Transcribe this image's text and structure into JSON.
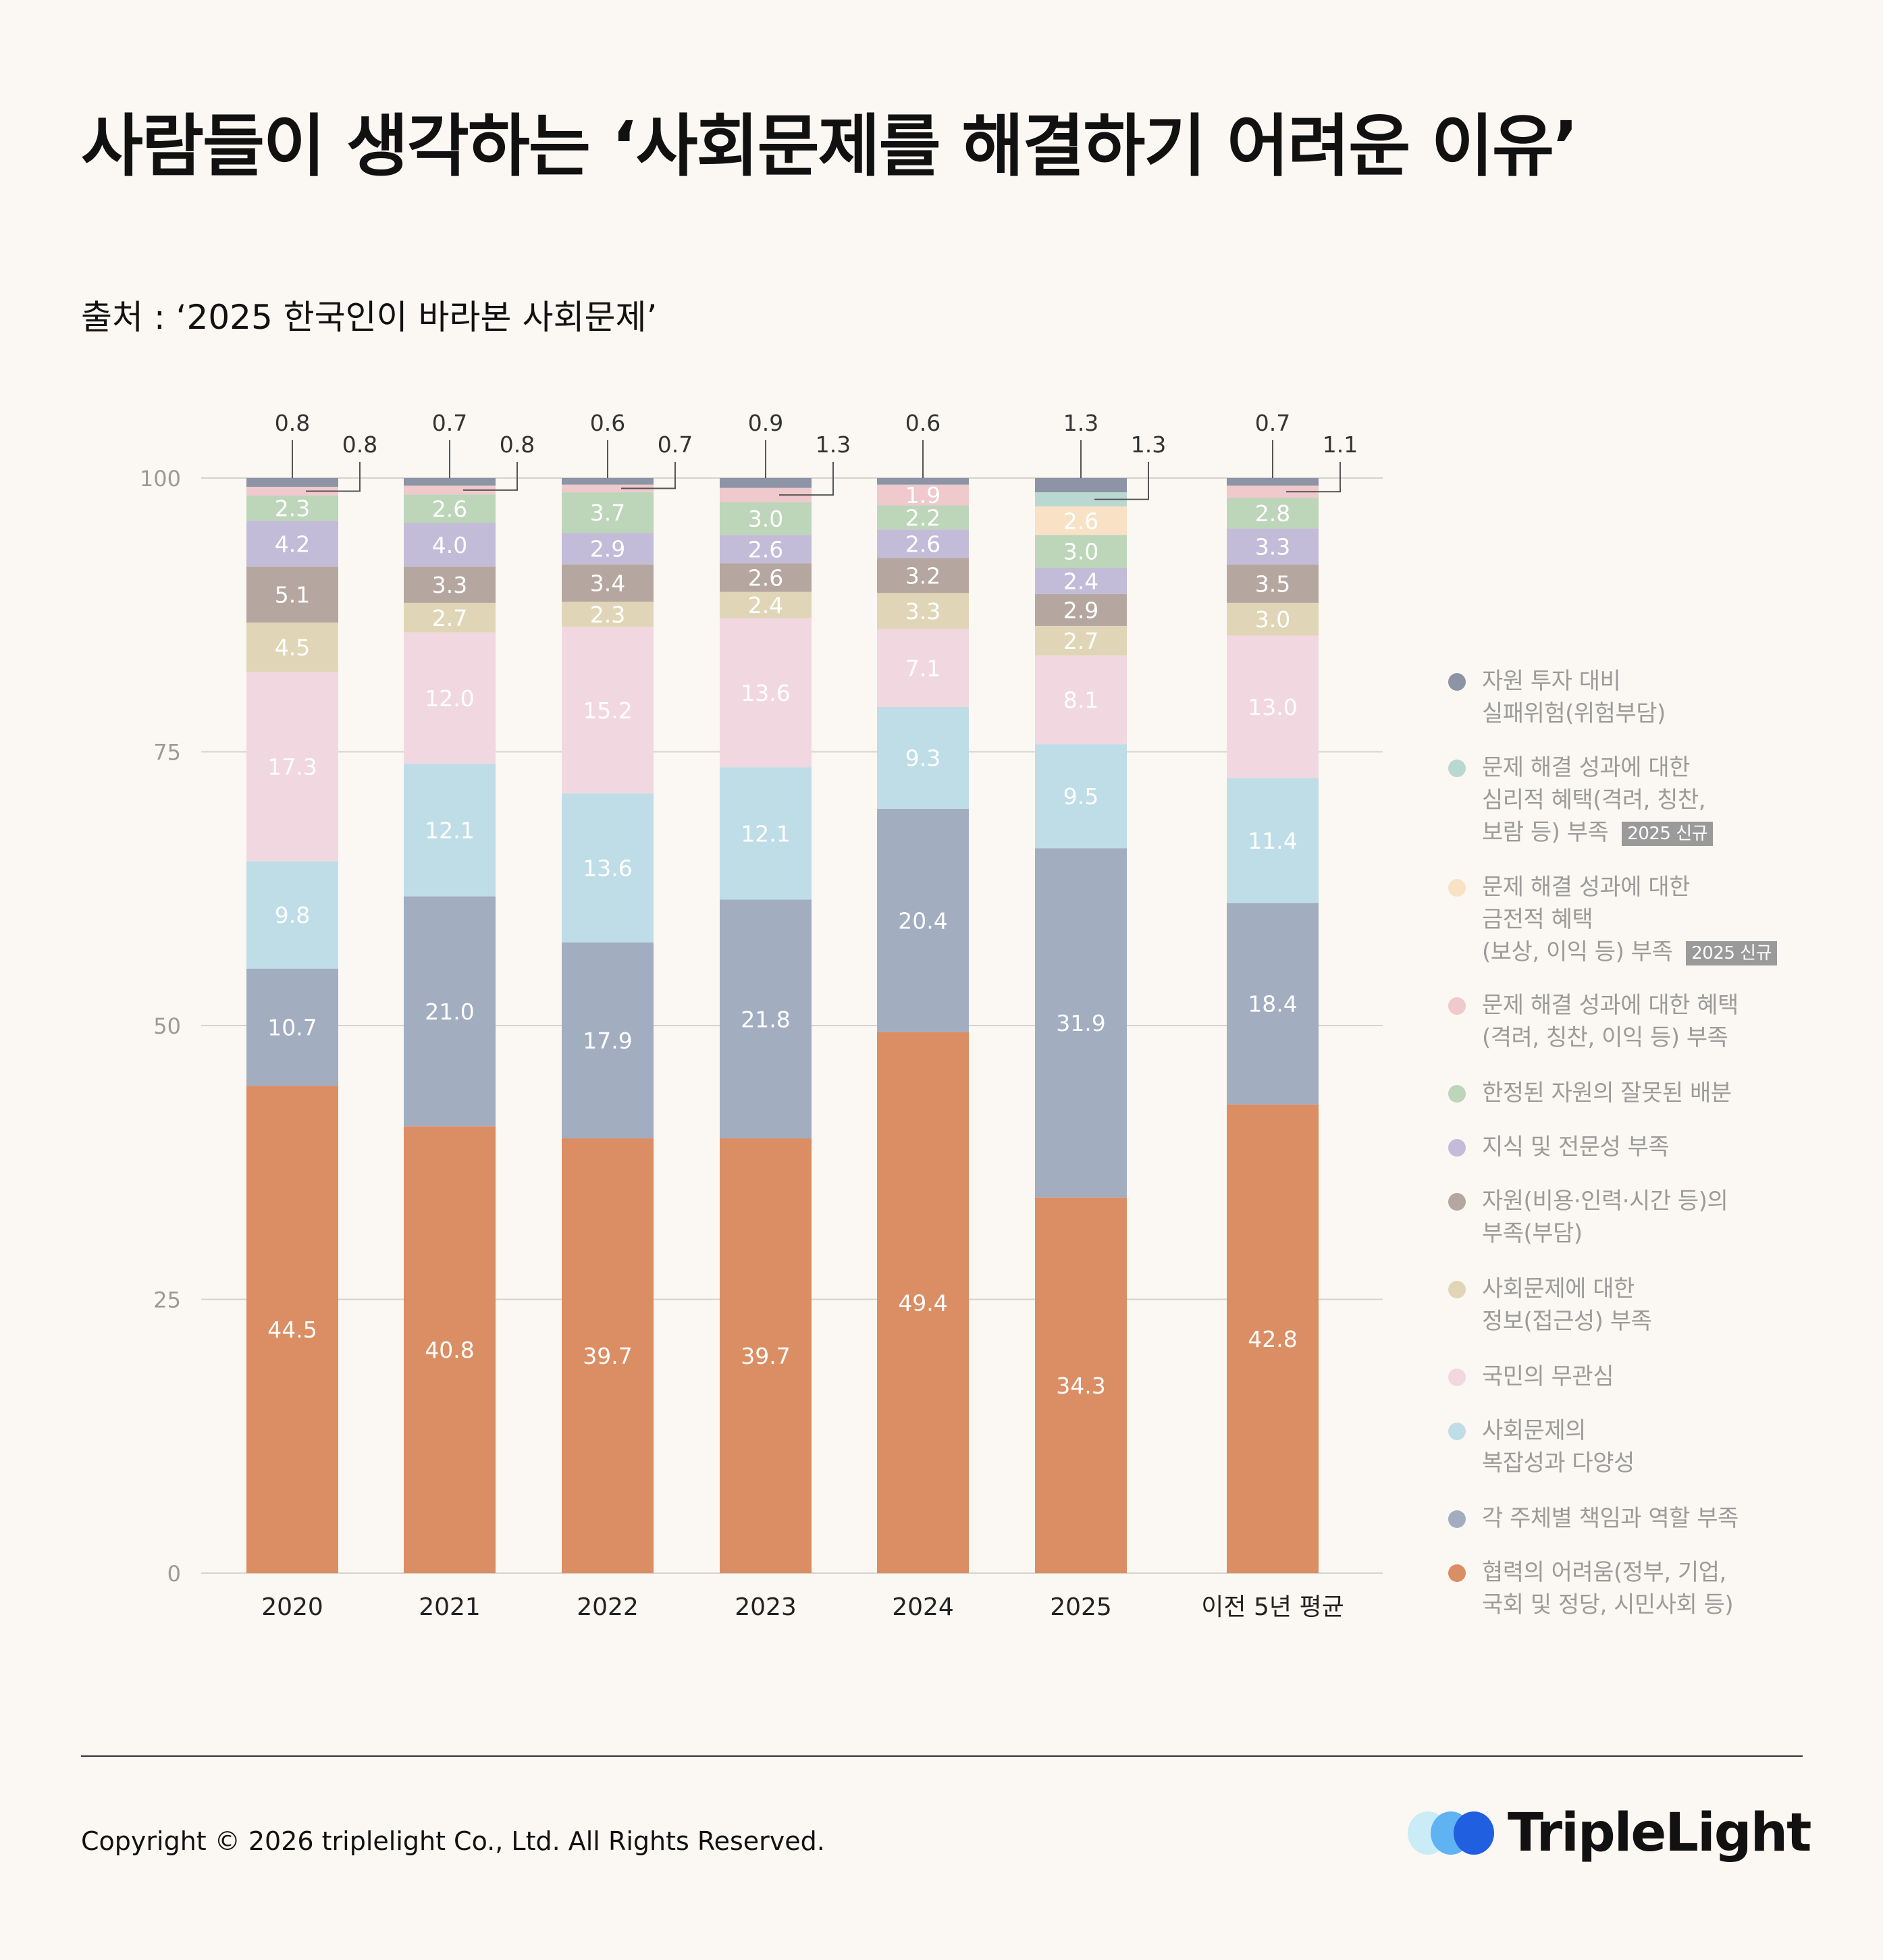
{
  "title": "사람들이 생각하는 ‘사회문제를 해결하기 어려운 이유’",
  "source": "출처 : ‘2025 한국인이 바라본 사회문제’",
  "footer": {
    "copyright": "Copyright © 2026 triplelight Co., Ltd. All Rights Reserved.",
    "logo_text": "TripleLight"
  },
  "legend": [
    {
      "label": "자원 투자 대비\n실패위험(위험부담)",
      "color": "#8c94a5"
    },
    {
      "label": "문제 해결 성과에 대한\n심리적 혜택(격려, 칭찬,\n보람 등) 부족",
      "color": "#b9d8cf",
      "badge": "2025 신규"
    },
    {
      "label": "문제 해결 성과에 대한\n금전적 혜택\n(보상, 이익 등) 부족",
      "color": "#f8e1c4",
      "badge": "2025 신규"
    },
    {
      "label": "문제 해결 성과에 대한 혜택\n(격려, 칭찬, 이익 등) 부족",
      "color": "#efc9cc"
    },
    {
      "label": "한정된 자원의 잘못된 배분",
      "color": "#bdd5b9"
    },
    {
      "label": "지식 및 전문성 부족",
      "color": "#c3bcd8"
    },
    {
      "label": "자원(비용·인력·시간 등)의\n부족(부담)",
      "color": "#b5a79f"
    },
    {
      "label": "사회문제에 대한\n정보(접근성) 부족",
      "color": "#e0d6b7"
    },
    {
      "label": "국민의 무관심",
      "color": "#f1d8e0"
    },
    {
      "label": "사회문제의\n복잡성과 다양성",
      "color": "#bfdde7"
    },
    {
      "label": "각 주체별 책임과 역할 부족",
      "color": "#a2adc0"
    },
    {
      "label": "협력의 어려움(정부, 기업,\n국회 및 정당, 시민사회 등)",
      "color": "#db8d63"
    }
  ],
  "chart_data": {
    "type": "bar",
    "stacked": true,
    "categories": [
      "2020",
      "2021",
      "2022",
      "2023",
      "2024",
      "2025",
      "이전 5년 평균"
    ],
    "ylim": [
      0,
      100
    ],
    "yticks": [
      "0",
      "25",
      "50",
      "75",
      "100"
    ],
    "series": [
      {
        "name": "협력의 어려움(정부, 기업, 국회 및 정당, 시민사회 등)",
        "color": "#db8d63",
        "values": [
          44.5,
          40.8,
          39.7,
          39.7,
          49.4,
          34.3,
          42.8
        ],
        "labels": [
          "44.5",
          "40.8",
          "39.7",
          "39.7",
          "49.4",
          "34.3",
          "42.8"
        ]
      },
      {
        "name": "각 주체별 책임과 역할 부족",
        "color": "#a2adc0",
        "values": [
          10.7,
          21.0,
          17.9,
          21.8,
          20.4,
          31.9,
          18.4
        ],
        "labels": [
          "10.7",
          "21.0",
          "17.9",
          "21.8",
          "20.4",
          "31.9",
          "18.4"
        ]
      },
      {
        "name": "사회문제의 복잡성과 다양성",
        "color": "#bfdde7",
        "values": [
          9.8,
          12.1,
          13.6,
          12.1,
          9.3,
          9.5,
          11.4
        ],
        "labels": [
          "9.8",
          "12.1",
          "13.6",
          "12.1",
          "9.3",
          "9.5",
          "11.4"
        ]
      },
      {
        "name": "국민의 무관심",
        "color": "#f1d8e0",
        "values": [
          17.3,
          12.0,
          15.2,
          13.6,
          7.1,
          8.1,
          13.0
        ],
        "labels": [
          "17.3",
          "12.0",
          "15.2",
          "13.6",
          "7.1",
          "8.1",
          "13.0"
        ]
      },
      {
        "name": "사회문제에 대한 정보(접근성) 부족",
        "color": "#e0d6b7",
        "values": [
          4.5,
          2.7,
          2.3,
          2.4,
          3.3,
          2.7,
          3.0
        ],
        "labels": [
          "4.5",
          "2.7",
          "2.3",
          "2.4",
          "3.3",
          "2.7",
          "3.0"
        ]
      },
      {
        "name": "자원(비용·인력·시간 등)의 부족(부담)",
        "color": "#b5a79f",
        "values": [
          5.1,
          3.3,
          3.4,
          2.6,
          3.2,
          2.9,
          3.5
        ],
        "labels": [
          "5.1",
          "3.3",
          "3.4",
          "2.6",
          "3.2",
          "2.9",
          "3.5"
        ]
      },
      {
        "name": "지식 및 전문성 부족",
        "color": "#c3bcd8",
        "values": [
          4.2,
          4.0,
          2.9,
          2.6,
          2.6,
          2.4,
          3.3
        ],
        "labels": [
          "4.2",
          "4.0",
          "2.9",
          "2.6",
          "2.6",
          "2.4",
          "3.3"
        ]
      },
      {
        "name": "한정된 자원의 잘못된 배분",
        "color": "#bdd5b9",
        "values": [
          2.3,
          2.6,
          3.7,
          3.0,
          2.2,
          3.0,
          2.8
        ],
        "labels": [
          "2.3",
          "2.6",
          "3.7",
          "3.0",
          "2.2",
          "3.0",
          "2.8"
        ]
      },
      {
        "name": "문제 해결 성과에 대한 혜택(격려, 칭찬, 이익 등) 부족",
        "color": "#efc9cc",
        "values": [
          0.8,
          0.8,
          0.7,
          1.3,
          1.9,
          0,
          1.1
        ],
        "labels": [
          "0.8",
          "0.8",
          "0.7",
          "1.3",
          "1.9",
          "",
          "1.1"
        ]
      },
      {
        "name": "문제 해결 성과에 대한 금전적 혜택(보상, 이익 등) 부족",
        "color": "#f8e1c4",
        "values": [
          0,
          0,
          0,
          0,
          0,
          2.6,
          0
        ],
        "labels": [
          "",
          "",
          "",
          "",
          "",
          "2.6",
          ""
        ]
      },
      {
        "name": "문제 해결 성과에 대한 심리적 혜택(격려, 칭찬, 보람 등) 부족",
        "color": "#b9d8cf",
        "values": [
          0,
          0,
          0,
          0,
          0,
          1.3,
          0
        ],
        "labels": [
          "",
          "",
          "",
          "",
          "",
          "1.3",
          ""
        ]
      },
      {
        "name": "자원 투자 대비 실패위험(위험부담)",
        "color": "#8c94a5",
        "values": [
          0.8,
          0.7,
          0.6,
          0.9,
          0.6,
          1.3,
          0.7
        ],
        "labels": [
          "0.8",
          "0.7",
          "0.6",
          "0.9",
          "0.6",
          "1.3",
          "0.7"
        ]
      }
    ]
  }
}
